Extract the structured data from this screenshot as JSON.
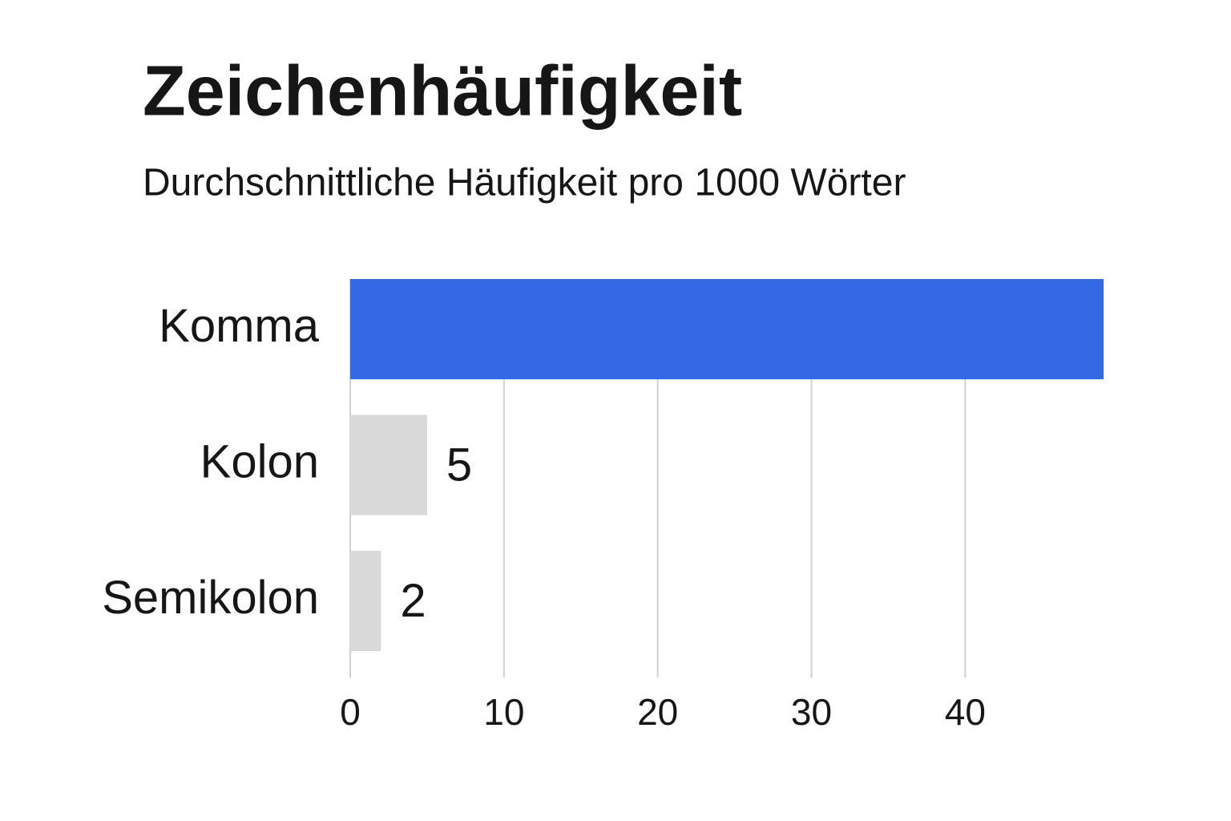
{
  "chart_data": {
    "type": "hbar",
    "title": "Zeichenhäufigkeit",
    "subtitle": "Durchschnittliche Häufigkeit pro 1000 Wörter",
    "categories": [
      "Komma",
      "Kolon",
      "Semikolon"
    ],
    "values": [
      49,
      5,
      2
    ],
    "value_labels": [
      null,
      "5",
      "2"
    ],
    "colors": [
      "#3469e3",
      "#d9d9d9",
      "#d9d9d9"
    ],
    "xlim": [
      0,
      49
    ],
    "xticks": [
      0,
      10,
      20,
      30,
      40
    ],
    "grid": true
  }
}
